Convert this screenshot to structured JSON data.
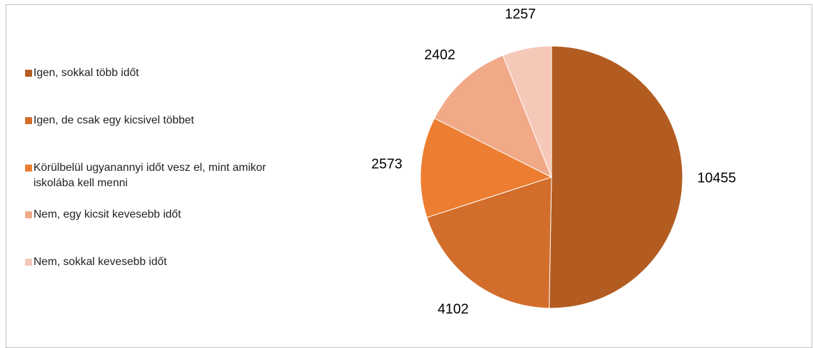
{
  "chart_data": {
    "type": "pie",
    "categories": [
      "Igen, sokkal több időt",
      "Igen, de csak egy kicsivel többet",
      "Körülbelül ugyanannyi időt vesz el, mint amikor iskolába kell menni",
      "Nem, egy kicsit kevesebb időt",
      "Nem, sokkal kevesebb időt"
    ],
    "values": [
      10455,
      4102,
      2573,
      2402,
      1257
    ],
    "colors": [
      "#b35c22",
      "#d26d2c",
      "#ed7d31",
      "#f1a988",
      "#f6c8b8"
    ],
    "legend": "left"
  }
}
